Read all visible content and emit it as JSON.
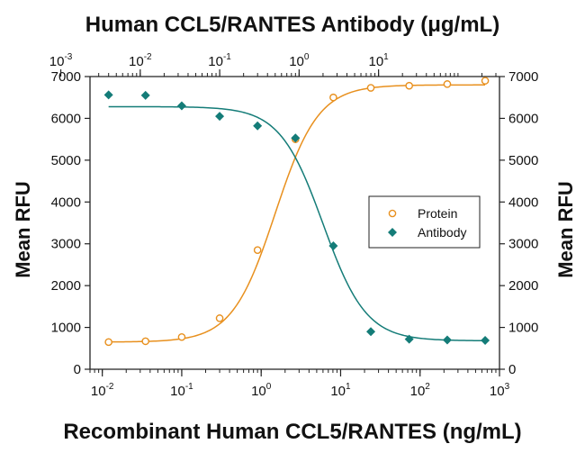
{
  "chart_data": {
    "type": "scatter",
    "title": "Human CCL5/RANTES Antibody (μg/mL)",
    "xlabel": "Recombinant Human CCL5/RANTES (ng/mL)",
    "ylabel_left": "Mean RFU",
    "ylabel_right": "Mean RFU",
    "x_scale": "log",
    "xlim": [
      0.007,
      1000
    ],
    "ylim": [
      0,
      7000
    ],
    "y_ticks": [
      "0",
      "1000",
      "2000",
      "3000",
      "4000",
      "5000",
      "6000",
      "7000"
    ],
    "x_bottom_ticks": [
      {
        "base": "10",
        "exp": "-2",
        "value": 0.01
      },
      {
        "base": "10",
        "exp": "-1",
        "value": 0.1
      },
      {
        "base": "10",
        "exp": "0",
        "value": 1
      },
      {
        "base": "10",
        "exp": "1",
        "value": 10
      },
      {
        "base": "10",
        "exp": "2",
        "value": 100
      },
      {
        "base": "10",
        "exp": "3",
        "value": 1000
      }
    ],
    "top_axis_scale": "log",
    "top_axis_to_bottom_factor": 0.333,
    "x_top_ticks": [
      {
        "base": "10",
        "exp": "-3",
        "value": 0.001
      },
      {
        "base": "10",
        "exp": "-2",
        "value": 0.01
      },
      {
        "base": "10",
        "exp": "-1",
        "value": 0.1
      },
      {
        "base": "10",
        "exp": "0",
        "value": 1
      },
      {
        "base": "10",
        "exp": "1",
        "value": 10
      }
    ],
    "legend_position": "center-right",
    "series": [
      {
        "name": "Protein",
        "marker": "open-circle",
        "color": "#E8901E",
        "x": [
          0.012,
          0.035,
          0.1,
          0.3,
          0.9,
          2.7,
          8.1,
          24,
          73,
          220,
          660
        ],
        "y": [
          650,
          670,
          770,
          1220,
          2850,
          5500,
          6500,
          6730,
          6780,
          6820,
          6900
        ],
        "fit": {
          "bottom": 650,
          "top": 6800,
          "ec50": 1.5,
          "hill": 1.6
        }
      },
      {
        "name": "Antibody",
        "marker": "filled-diamond",
        "color": "#147C78",
        "x": [
          0.012,
          0.035,
          0.1,
          0.3,
          0.9,
          2.7,
          8.1,
          24,
          73,
          220,
          660
        ],
        "y": [
          6560,
          6550,
          6300,
          6050,
          5820,
          5530,
          2950,
          900,
          720,
          700,
          690
        ],
        "fit": {
          "bottom": 680,
          "top": 6280,
          "ec50": 6.0,
          "hill": 1.6
        }
      }
    ]
  }
}
